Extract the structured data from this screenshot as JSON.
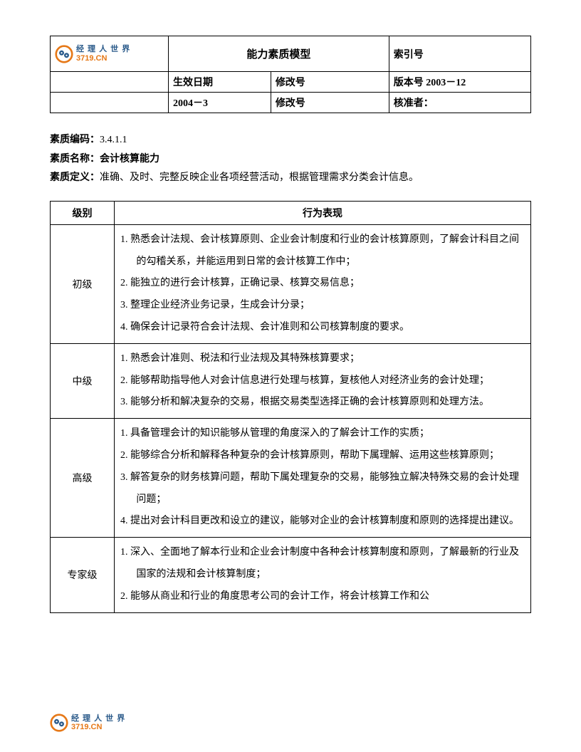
{
  "logo": {
    "top_text": "经 理 人 世 界",
    "bottom_text": "3719.CN",
    "icon_outer": "#e67817",
    "icon_inner": "#2a5a8a"
  },
  "header": {
    "title": "能力素质模型",
    "index_label": "索引号",
    "effective_date_label": "生效日期",
    "revision_label_1": "修改号",
    "version_label": "版本号 2003－12",
    "effective_date_value": "2004－3",
    "revision_label_2": "修改号",
    "approver_label": "核准者："
  },
  "meta": {
    "code_label": "素质编码：",
    "code_value": "3.4.1.1",
    "name_label": "素质名称：",
    "name_value": "会计核算能力",
    "def_label": "素质定义：",
    "def_value": "准确、及时、完整反映企业各项经营活动，根据管理需求分类会计信息。"
  },
  "table": {
    "col_level": "级别",
    "col_behavior": "行为表现",
    "rows": [
      {
        "level": "初级",
        "items": [
          "1. 熟悉会计法规、会计核算原则、企业会计制度和行业的会计核算原则，了解会计科目之间的勾稽关系，并能运用到日常的会计核算工作中；",
          "2. 能独立的进行会计核算，正确记录、核算交易信息；",
          "3. 整理企业经济业务记录，生成会计分录；",
          "4. 确保会计记录符合会计法规、会计准则和公司核算制度的要求。"
        ]
      },
      {
        "level": "中级",
        "items": [
          "1. 熟悉会计准则、税法和行业法规及其特殊核算要求；",
          "2. 能够帮助指导他人对会计信息进行处理与核算，复核他人对经济业务的会计处理；",
          "3. 能够分析和解决复杂的交易，根据交易类型选择正确的会计核算原则和处理方法。"
        ]
      },
      {
        "level": "高级",
        "items": [
          "1. 具备管理会计的知识能够从管理的角度深入的了解会计工作的实质；",
          "2. 能够综合分析和解释各种复杂的会计核算原则，帮助下属理解、运用这些核算原则；",
          "3. 解答复杂的财务核算问题，帮助下属处理复杂的交易，能够独立解决特殊交易的会计处理问题；",
          "4. 提出对会计科目更改和设立的建议，能够对企业的会计核算制度和原则的选择提出建议。"
        ]
      },
      {
        "level": "专家级",
        "items": [
          "1. 深入、全面地了解本行业和企业会计制度中各种会计核算制度和原则，了解最新的行业及国家的法规和会计核算制度；",
          "2. 能够从商业和行业的角度思考公司的会计工作，将会计核算工作和公"
        ]
      }
    ]
  }
}
